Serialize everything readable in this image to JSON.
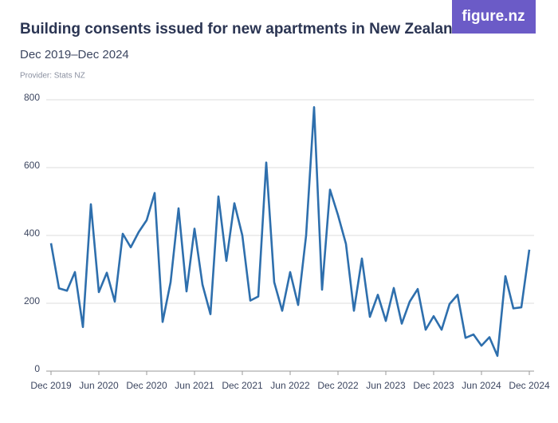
{
  "chart_data": {
    "type": "line",
    "title": "Building consents issued for new apartments in New Zealand",
    "subtitle": "Dec 2019–Dec 2024",
    "provider": "Provider: Stats NZ",
    "logo": "figure.nz",
    "categories": [
      "Dec 2019",
      null,
      null,
      null,
      null,
      null,
      "Jun 2020",
      null,
      null,
      null,
      null,
      null,
      "Dec 2020",
      null,
      null,
      null,
      null,
      null,
      "Jun 2021",
      null,
      null,
      null,
      null,
      null,
      "Dec 2021",
      null,
      null,
      null,
      null,
      null,
      "Jun 2022",
      null,
      null,
      null,
      null,
      null,
      "Dec 2022",
      null,
      null,
      null,
      null,
      null,
      "Jun 2023",
      null,
      null,
      null,
      null,
      null,
      "Dec 2023",
      null,
      null,
      null,
      null,
      null,
      "Jun 2024",
      null,
      null,
      null,
      null,
      null,
      "Dec 2024"
    ],
    "series": [
      {
        "name": "Building consents",
        "color": "#2e6fad",
        "values": [
          377,
          244,
          237,
          292,
          130,
          492,
          233,
          290,
          205,
          405,
          365,
          410,
          445,
          525,
          145,
          262,
          480,
          235,
          420,
          255,
          168,
          515,
          325,
          495,
          400,
          208,
          220,
          615,
          262,
          178,
          292,
          195,
          400,
          778,
          240,
          535,
          460,
          375,
          178,
          332,
          160,
          225,
          148,
          245,
          140,
          205,
          242,
          122,
          162,
          122,
          198,
          225,
          98,
          108,
          75,
          100,
          45,
          280,
          185,
          188,
          358
        ]
      }
    ],
    "ylim": [
      0,
      800
    ],
    "yticks": [
      0,
      200,
      400,
      600,
      800
    ],
    "grid": true
  }
}
